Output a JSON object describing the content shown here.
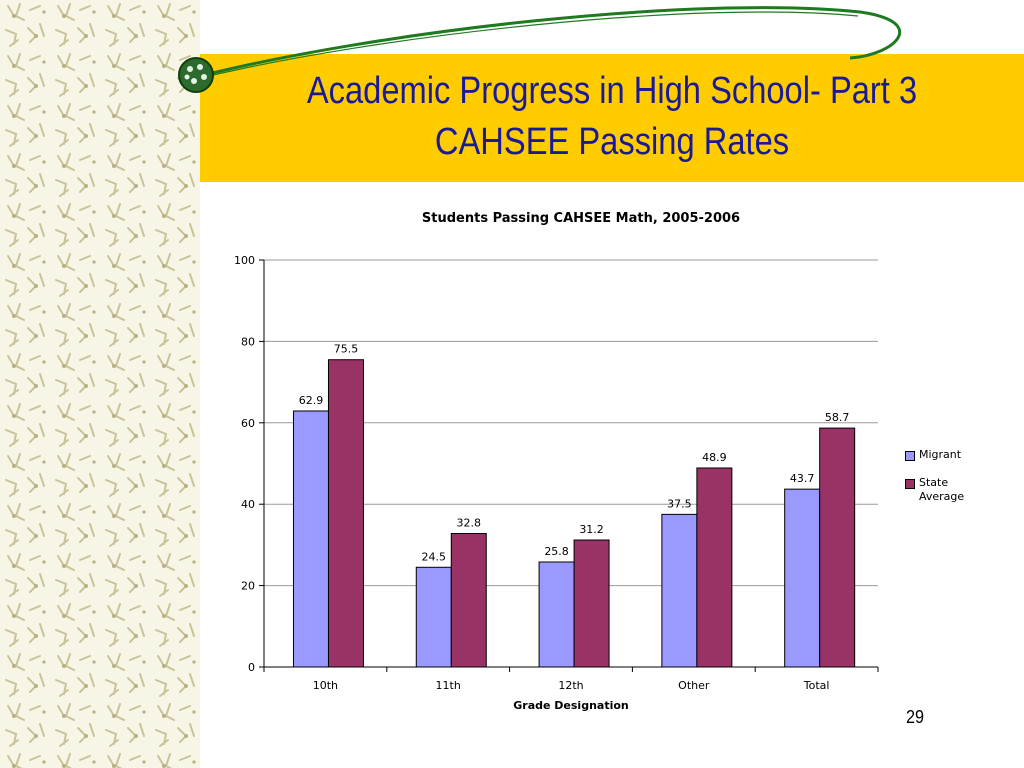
{
  "slide": {
    "title_line1": "Academic Progress in High School- Part 3",
    "title_line2": "CAHSEE Passing Rates",
    "page_number": "29",
    "colors": {
      "band": "#ffcc00",
      "title_text": "#1a1a99",
      "swoosh": "#1f7a1f"
    }
  },
  "chart_data": {
    "type": "bar",
    "title": "Students Passing CAHSEE Math, 2005-2006",
    "xlabel": "Grade Designation",
    "ylabel": "",
    "categories": [
      "10th",
      "11th",
      "12th",
      "Other",
      "Total"
    ],
    "series": [
      {
        "name": "Migrant",
        "values": [
          62.9,
          24.5,
          25.8,
          37.5,
          43.7
        ],
        "color": "#9999ff"
      },
      {
        "name": "State Average",
        "values": [
          75.5,
          32.8,
          31.2,
          48.9,
          58.7
        ],
        "color": "#993366"
      }
    ],
    "ylim": [
      0,
      100
    ],
    "yticks": [
      0,
      20,
      40,
      60,
      80,
      100
    ],
    "grid": true,
    "legend_position": "right"
  }
}
